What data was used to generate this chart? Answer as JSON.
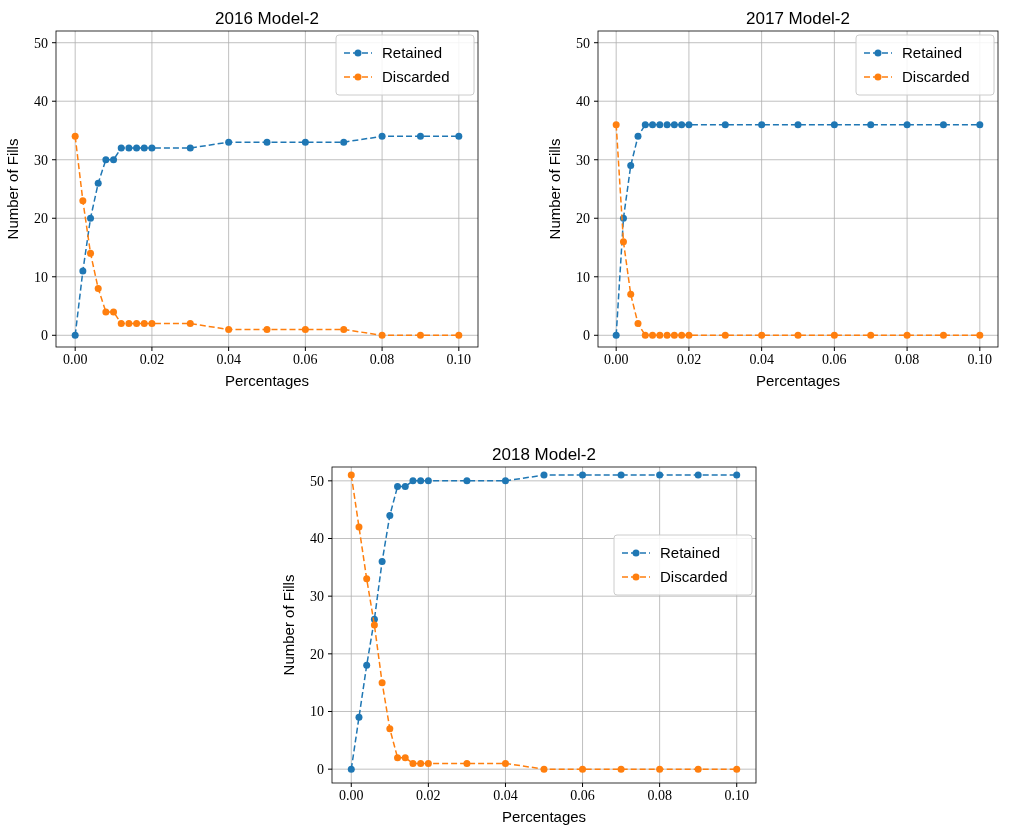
{
  "chart_data": [
    {
      "type": "line",
      "title": "2016 Model-2",
      "xlabel": "Percentages",
      "ylabel": "Number of Fills",
      "x": [
        0,
        0.002,
        0.004,
        0.006,
        0.008,
        0.01,
        0.012,
        0.014,
        0.016,
        0.018,
        0.02,
        0.03,
        0.04,
        0.05,
        0.06,
        0.07,
        0.08,
        0.09,
        0.1
      ],
      "xlim": [
        -0.005,
        0.105
      ],
      "xticks": [
        {
          "value": 0,
          "label": "0.00"
        },
        {
          "value": 0.02,
          "label": "0.02"
        },
        {
          "value": 0.04,
          "label": "0.04"
        },
        {
          "value": 0.06,
          "label": "0.06"
        },
        {
          "value": 0.08,
          "label": "0.08"
        },
        {
          "value": 0.1,
          "label": "0.10"
        }
      ],
      "ylim": [
        -2,
        52
      ],
      "yticks": [
        0,
        10,
        20,
        30,
        40,
        50
      ],
      "grid": true,
      "legend": "top right",
      "marker": "circle",
      "line_style": "dashed",
      "series": [
        {
          "name": "Retained",
          "color": "#1f77b4",
          "values": [
            0,
            11,
            20,
            26,
            30,
            30,
            32,
            32,
            32,
            32,
            32,
            32,
            33,
            33,
            33,
            33,
            34,
            34,
            34
          ]
        },
        {
          "name": "Discarded",
          "color": "#ff7f0e",
          "values": [
            34,
            23,
            14,
            8,
            4,
            4,
            2,
            2,
            2,
            2,
            2,
            2,
            1,
            1,
            1,
            1,
            0,
            0,
            0
          ]
        }
      ]
    },
    {
      "type": "line",
      "title": "2017 Model-2",
      "xlabel": "Percentages",
      "ylabel": "Number of Fills",
      "x": [
        0,
        0.002,
        0.004,
        0.006,
        0.008,
        0.01,
        0.012,
        0.014,
        0.016,
        0.018,
        0.02,
        0.03,
        0.04,
        0.05,
        0.06,
        0.07,
        0.08,
        0.09,
        0.1
      ],
      "xlim": [
        -0.005,
        0.105
      ],
      "xticks": [
        {
          "value": 0,
          "label": "0.00"
        },
        {
          "value": 0.02,
          "label": "0.02"
        },
        {
          "value": 0.04,
          "label": "0.04"
        },
        {
          "value": 0.06,
          "label": "0.06"
        },
        {
          "value": 0.08,
          "label": "0.08"
        },
        {
          "value": 0.1,
          "label": "0.10"
        }
      ],
      "ylim": [
        -2,
        52
      ],
      "yticks": [
        0,
        10,
        20,
        30,
        40,
        50
      ],
      "grid": true,
      "legend": "top right",
      "marker": "circle",
      "line_style": "dashed",
      "series": [
        {
          "name": "Retained",
          "color": "#1f77b4",
          "values": [
            0,
            20,
            29,
            34,
            36,
            36,
            36,
            36,
            36,
            36,
            36,
            36,
            36,
            36,
            36,
            36,
            36,
            36,
            36
          ]
        },
        {
          "name": "Discarded",
          "color": "#ff7f0e",
          "values": [
            36,
            16,
            7,
            2,
            0,
            0,
            0,
            0,
            0,
            0,
            0,
            0,
            0,
            0,
            0,
            0,
            0,
            0,
            0
          ]
        }
      ]
    },
    {
      "type": "line",
      "title": "2018 Model-2",
      "xlabel": "Percentages",
      "ylabel": "Number of Fills",
      "x": [
        0,
        0.002,
        0.004,
        0.006,
        0.008,
        0.01,
        0.012,
        0.014,
        0.016,
        0.018,
        0.02,
        0.03,
        0.04,
        0.05,
        0.06,
        0.07,
        0.08,
        0.09,
        0.1
      ],
      "xlim": [
        -0.005,
        0.105
      ],
      "xticks": [
        {
          "value": 0,
          "label": "0.00"
        },
        {
          "value": 0.02,
          "label": "0.02"
        },
        {
          "value": 0.04,
          "label": "0.04"
        },
        {
          "value": 0.06,
          "label": "0.06"
        },
        {
          "value": 0.08,
          "label": "0.08"
        },
        {
          "value": 0.1,
          "label": "0.10"
        }
      ],
      "ylim": [
        -2.4,
        52.4
      ],
      "yticks": [
        0,
        10,
        20,
        30,
        40,
        50
      ],
      "grid": true,
      "legend": "right",
      "marker": "circle",
      "line_style": "dashed",
      "series": [
        {
          "name": "Retained",
          "color": "#1f77b4",
          "values": [
            0,
            9,
            18,
            26,
            36,
            44,
            49,
            49,
            50,
            50,
            50,
            50,
            50,
            51,
            51,
            51,
            51,
            51,
            51
          ]
        },
        {
          "name": "Discarded",
          "color": "#ff7f0e",
          "values": [
            51,
            42,
            33,
            25,
            15,
            7,
            2,
            2,
            1,
            1,
            1,
            1,
            1,
            0,
            0,
            0,
            0,
            0,
            0
          ]
        }
      ]
    }
  ]
}
